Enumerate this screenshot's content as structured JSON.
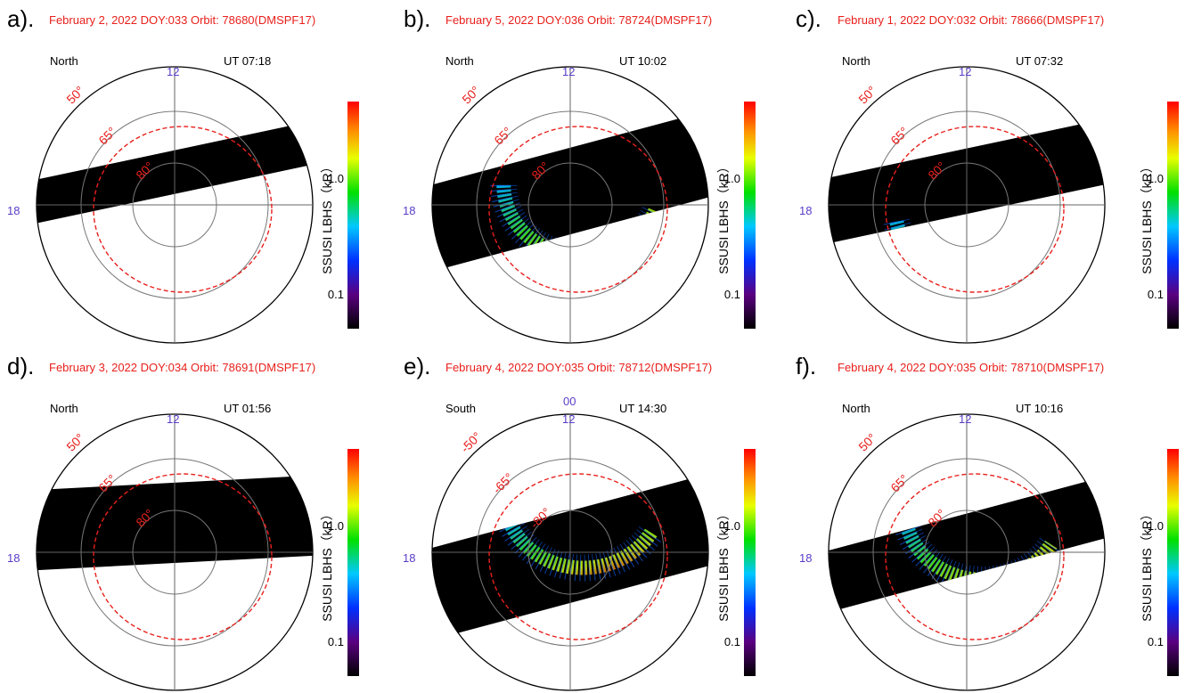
{
  "panels": [
    {
      "label": "a).",
      "header": "February 2, 2022 DOY:033   Orbit: 78680(DMSPF17)",
      "hemisphere": "North",
      "ut": "UT 07:18",
      "noon": "12",
      "dusk": "18",
      "lat_labels": [
        "50°",
        "65°",
        "80°"
      ],
      "colorbar": {
        "title": "SSUSI LBHS（kR）",
        "ticks": [
          "1.0",
          "0.1"
        ]
      }
    },
    {
      "label": "b).",
      "header": "February 5, 2022 DOY:036   Orbit: 78724(DMSPF17)",
      "hemisphere": "North",
      "ut": "UT 10:02",
      "noon": "12",
      "dusk": "18",
      "lat_labels": [
        "50°",
        "65°",
        "80°"
      ],
      "colorbar": {
        "title": "SSUSI LBHS（kR）",
        "ticks": [
          "1.0",
          "0.1"
        ]
      }
    },
    {
      "label": "c).",
      "header": "February 1, 2022 DOY:032   Orbit: 78666(DMSPF17)",
      "hemisphere": "North",
      "ut": "UT 07:32",
      "noon": "12",
      "dusk": "18",
      "lat_labels": [
        "50°",
        "65°",
        "80°"
      ],
      "colorbar": {
        "title": "SSUSI LBHS（kR）",
        "ticks": [
          "1.0",
          "0.1"
        ]
      }
    },
    {
      "label": "d).",
      "header": "February 3, 2022 DOY:034   Orbit: 78691(DMSPF17)",
      "hemisphere": "North",
      "ut": "UT 01:56",
      "noon": "12",
      "dusk": "18",
      "lat_labels": [
        "50°",
        "65°",
        "80°"
      ],
      "colorbar": {
        "title": "SSUSI LBHS（kR）",
        "ticks": [
          "1.0",
          "0.1"
        ]
      }
    },
    {
      "label": "e).",
      "header": "February 4, 2022 DOY:035   Orbit: 78712(DMSPF17)",
      "hemisphere": "South",
      "ut": "UT 14:30",
      "top": "00",
      "noon": "12",
      "dusk": "18",
      "lat_labels": [
        "-50°",
        "-65°",
        "-80°"
      ],
      "colorbar": {
        "title": "SSUSI LBHS（kR）",
        "ticks": [
          "1.0",
          "0.1"
        ]
      }
    },
    {
      "label": "f).",
      "header": "February 4, 2022 DOY:035   Orbit: 78710(DMSPF17)",
      "hemisphere": "North",
      "ut": "UT 10:16",
      "noon": "12",
      "dusk": "18",
      "lat_labels": [
        "50°",
        "65°",
        "80°"
      ],
      "colorbar": {
        "title": "SSUSI LBHS（kR）",
        "ticks": [
          "1.0",
          "0.1"
        ]
      }
    }
  ]
}
